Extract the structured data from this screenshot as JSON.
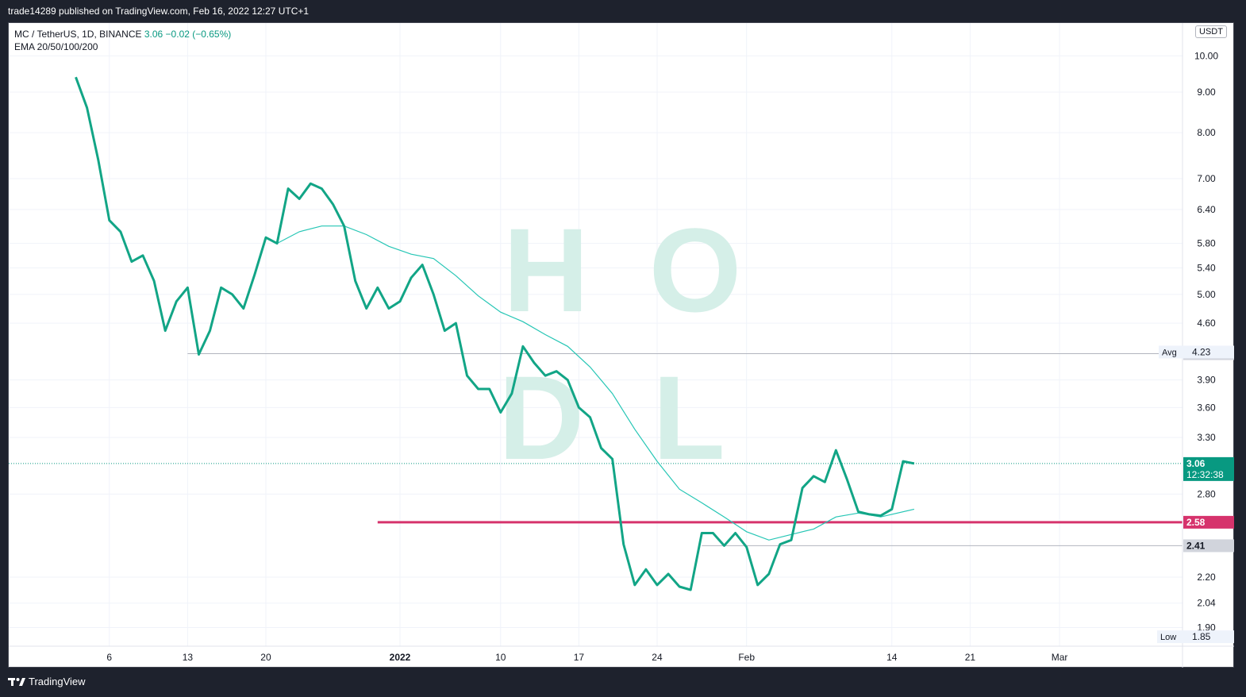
{
  "header": {
    "published_text": "trade14289 published on TradingView.com, Feb 16, 2022 12:27 UTC+1"
  },
  "legend": {
    "symbol": "MC / TetherUS, 1D, BINANCE",
    "price": "3.06",
    "change": "−0.02 (−0.65%)",
    "indicator": "EMA 20/50/100/200"
  },
  "currency": "USDT",
  "watermark": [
    "H",
    "O",
    "D",
    "L"
  ],
  "footer": {
    "brand": "TradingView"
  },
  "price_tags": {
    "avg_label": "Avg",
    "avg_value": "4.23",
    "line_4_21": "4.21",
    "last": "3.06",
    "countdown": "12:32:38",
    "support": "2.58",
    "line_2_41": "2.41",
    "low_label": "Low",
    "low_value": "1.85"
  },
  "colors": {
    "price_line": "#12a586",
    "ema_line": "#26c6b5",
    "support": "#d6336c",
    "last_tag": "#089981",
    "watermark": "#d5efe8"
  },
  "chart_data": {
    "type": "line",
    "title": "MC / TetherUS, 1D, BINANCE",
    "y_scale": "log",
    "y_ticks": [
      1.9,
      2.04,
      2.2,
      2.41,
      2.8,
      3.06,
      3.3,
      3.6,
      3.9,
      4.21,
      4.6,
      5.0,
      5.4,
      5.8,
      6.4,
      7.0,
      8.0,
      9.0,
      10.0
    ],
    "x_ticks": [
      "6",
      "13",
      "20",
      "2022",
      "10",
      "17",
      "24",
      "Feb",
      "14",
      "21",
      "Mar"
    ],
    "x_range": [
      "2021-11-27",
      "2022-03-12"
    ],
    "ylim": [
      1.8,
      11.0
    ],
    "series": [
      {
        "name": "MC / TetherUS",
        "x": [
          "2021-12-03",
          "2021-12-04",
          "2021-12-05",
          "2021-12-06",
          "2021-12-07",
          "2021-12-08",
          "2021-12-09",
          "2021-12-10",
          "2021-12-11",
          "2021-12-12",
          "2021-12-13",
          "2021-12-14",
          "2021-12-15",
          "2021-12-16",
          "2021-12-17",
          "2021-12-18",
          "2021-12-19",
          "2021-12-20",
          "2021-12-21",
          "2021-12-22",
          "2021-12-23",
          "2021-12-24",
          "2021-12-25",
          "2021-12-26",
          "2021-12-27",
          "2021-12-28",
          "2021-12-29",
          "2021-12-30",
          "2021-12-31",
          "2022-01-01",
          "2022-01-02",
          "2022-01-03",
          "2022-01-04",
          "2022-01-05",
          "2022-01-06",
          "2022-01-07",
          "2022-01-08",
          "2022-01-09",
          "2022-01-10",
          "2022-01-11",
          "2022-01-12",
          "2022-01-13",
          "2022-01-14",
          "2022-01-15",
          "2022-01-16",
          "2022-01-17",
          "2022-01-18",
          "2022-01-19",
          "2022-01-20",
          "2022-01-21",
          "2022-01-22",
          "2022-01-23",
          "2022-01-24",
          "2022-01-25",
          "2022-01-26",
          "2022-01-27",
          "2022-01-28",
          "2022-01-29",
          "2022-01-30",
          "2022-01-31",
          "2022-02-01",
          "2022-02-02",
          "2022-02-03",
          "2022-02-04",
          "2022-02-05",
          "2022-02-06",
          "2022-02-07",
          "2022-02-08",
          "2022-02-09",
          "2022-02-10",
          "2022-02-11",
          "2022-02-12",
          "2022-02-13",
          "2022-02-14",
          "2022-02-15",
          "2022-02-16"
        ],
        "values": [
          9.4,
          8.6,
          7.4,
          6.2,
          6.0,
          5.5,
          5.6,
          5.2,
          4.5,
          4.9,
          5.1,
          4.2,
          4.5,
          5.1,
          5.0,
          4.8,
          5.3,
          5.9,
          5.8,
          6.8,
          6.6,
          6.9,
          6.8,
          6.5,
          6.1,
          5.2,
          4.8,
          5.1,
          4.8,
          4.9,
          5.25,
          5.45,
          5.0,
          4.5,
          4.6,
          3.95,
          3.8,
          3.8,
          3.55,
          3.75,
          4.3,
          4.1,
          3.95,
          4.0,
          3.9,
          3.6,
          3.5,
          3.2,
          3.1,
          2.42,
          2.15,
          2.25,
          2.15,
          2.22,
          2.14,
          2.12,
          2.5,
          2.5,
          2.41,
          2.5,
          2.4,
          2.15,
          2.22,
          2.42,
          2.45,
          2.85,
          2.95,
          2.9,
          3.18,
          2.92,
          2.66,
          2.64,
          2.63,
          2.68,
          3.08,
          3.06
        ]
      },
      {
        "name": "EMA 20",
        "x": [
          "2021-12-21",
          "2021-12-23",
          "2021-12-25",
          "2021-12-27",
          "2021-12-29",
          "2021-12-31",
          "2022-01-02",
          "2022-01-04",
          "2022-01-06",
          "2022-01-08",
          "2022-01-10",
          "2022-01-12",
          "2022-01-14",
          "2022-01-16",
          "2022-01-18",
          "2022-01-20",
          "2022-01-22",
          "2022-01-24",
          "2022-01-26",
          "2022-01-28",
          "2022-01-30",
          "2022-02-01",
          "2022-02-03",
          "2022-02-05",
          "2022-02-07",
          "2022-02-09",
          "2022-02-11",
          "2022-02-13",
          "2022-02-16"
        ],
        "values": [
          5.8,
          6.0,
          6.1,
          6.1,
          5.95,
          5.75,
          5.62,
          5.55,
          5.28,
          4.98,
          4.75,
          4.62,
          4.45,
          4.3,
          4.05,
          3.75,
          3.38,
          3.08,
          2.84,
          2.73,
          2.62,
          2.51,
          2.45,
          2.49,
          2.53,
          2.62,
          2.65,
          2.62,
          2.68
        ]
      }
    ],
    "hlines": [
      {
        "value": 4.21,
        "label": "4.21"
      },
      {
        "value": 2.58,
        "label": "2.58"
      },
      {
        "value": 2.41,
        "label": "2.41"
      },
      {
        "value": 3.06,
        "label": "3.06"
      }
    ],
    "avg": 4.23,
    "low": 1.85,
    "grid": true
  }
}
